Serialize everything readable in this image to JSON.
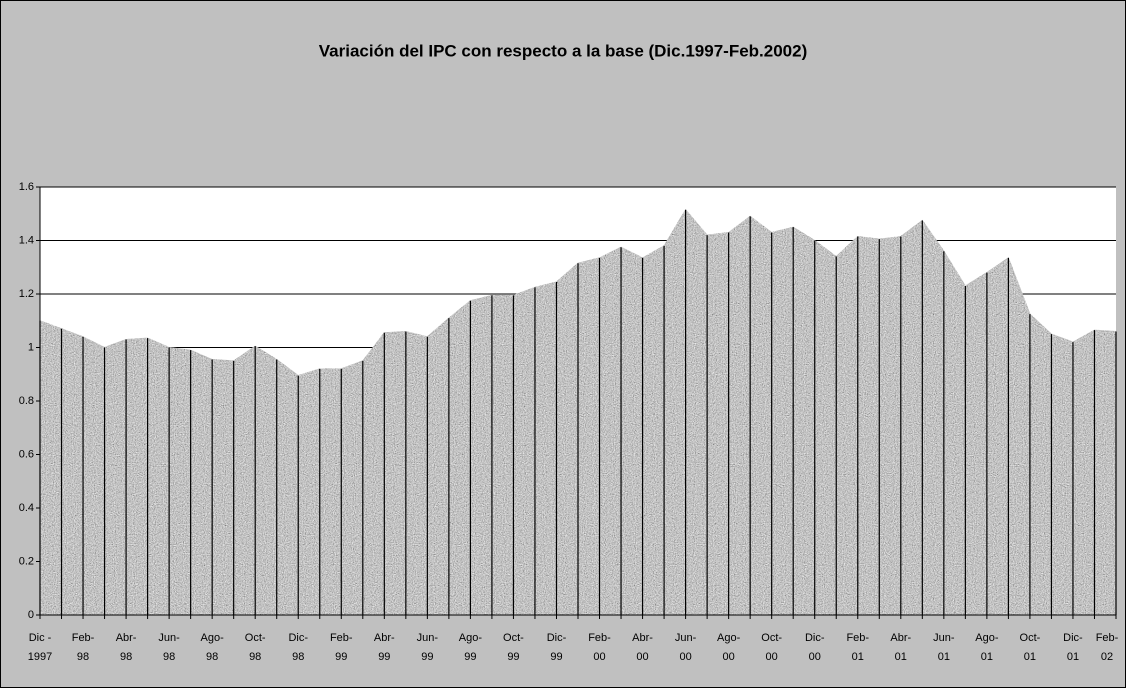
{
  "chart_data": {
    "type": "area",
    "title": "Variación del IPC con respecto a la base (Dic.1997-Feb.2002)",
    "categories": [
      "Dic - 1997",
      null,
      "Feb- 98",
      null,
      "Abr- 98",
      null,
      "Jun- 98",
      null,
      "Ago- 98",
      null,
      "Oct- 98",
      null,
      "Dic- 98",
      null,
      "Feb- 99",
      null,
      "Abr- 99",
      null,
      "Jun- 99",
      null,
      "Ago- 99",
      null,
      "Oct- 99",
      null,
      "Dic- 99",
      null,
      "Feb- 00",
      null,
      "Abr- 00",
      null,
      "Jun- 00",
      null,
      "Ago- 00",
      null,
      "Oct- 00",
      null,
      "Dic- 00",
      null,
      "Feb- 01",
      null,
      "Abr- 01",
      null,
      "Jun- 01",
      null,
      "Ago- 01",
      null,
      "Oct- 01",
      null,
      "Dic- 01",
      null,
      "Feb- 02"
    ],
    "values": [
      1.1,
      1.07,
      1.04,
      1.0,
      1.03,
      1.035,
      1.0,
      0.99,
      0.955,
      0.95,
      1.005,
      0.955,
      0.895,
      0.92,
      0.92,
      0.95,
      1.055,
      1.06,
      1.04,
      1.11,
      1.175,
      1.195,
      1.195,
      1.225,
      1.245,
      1.315,
      1.335,
      1.375,
      1.335,
      1.38,
      1.515,
      1.42,
      1.43,
      1.49,
      1.43,
      1.45,
      1.4,
      1.34,
      1.415,
      1.405,
      1.415,
      1.475,
      1.36,
      1.23,
      1.28,
      1.335,
      1.125,
      1.05,
      1.02,
      1.065,
      1.06
    ],
    "color": "#8a8a8a",
    "ylim": [
      0,
      1.6
    ],
    "yticks": [
      0,
      0.2,
      0.4,
      0.6,
      0.8,
      1,
      1.2,
      1.4,
      1.6
    ],
    "grid": true
  }
}
